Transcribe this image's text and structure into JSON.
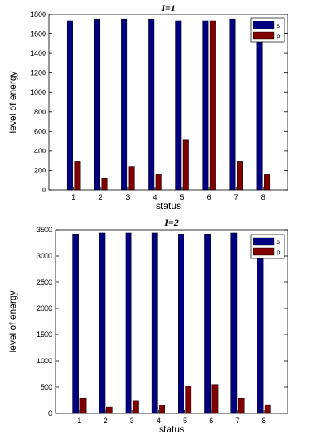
{
  "chart_data": [
    {
      "type": "bar",
      "title": "I=1",
      "xlabel": "status",
      "ylabel": "level of energy",
      "categories": [
        "1",
        "2",
        "3",
        "4",
        "5",
        "6",
        "7",
        "8"
      ],
      "ylim": [
        0,
        1800
      ],
      "yticks": [
        0,
        200,
        400,
        600,
        800,
        1000,
        1200,
        1400,
        1600,
        1800
      ],
      "legend_position": "top-right",
      "series": [
        {
          "name": "s",
          "color": "#000080",
          "values": [
            1735,
            1750,
            1750,
            1750,
            1735,
            1735,
            1750,
            1620
          ]
        },
        {
          "name": "p",
          "color": "#800000",
          "values": [
            290,
            120,
            240,
            160,
            515,
            1735,
            290,
            160
          ]
        }
      ]
    },
    {
      "type": "bar",
      "title": "I=2",
      "xlabel": "status",
      "ylabel": "level of energy",
      "categories": [
        "1",
        "2",
        "3",
        "4",
        "5",
        "6",
        "7",
        "8"
      ],
      "ylim": [
        0,
        3500
      ],
      "yticks": [
        0,
        500,
        1000,
        1500,
        2000,
        2500,
        3000,
        3500
      ],
      "legend_position": "top-right",
      "series": [
        {
          "name": "s",
          "color": "#000080",
          "values": [
            3420,
            3440,
            3440,
            3440,
            3420,
            3420,
            3440,
            3050
          ]
        },
        {
          "name": "p",
          "color": "#800000",
          "values": [
            285,
            120,
            245,
            160,
            520,
            550,
            285,
            165
          ]
        }
      ]
    }
  ]
}
